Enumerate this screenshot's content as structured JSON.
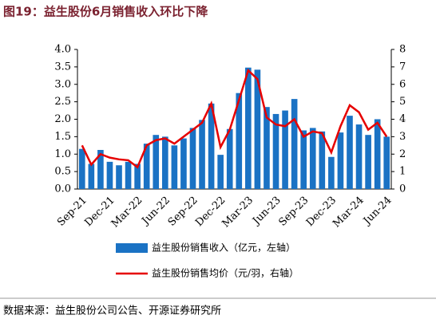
{
  "chart_data": {
    "type": "bar",
    "title": "图19：益生股份6月销售收入环比下降",
    "categories": [
      "Sep-21",
      null,
      null,
      "Dec-21",
      null,
      null,
      "Mar-22",
      null,
      null,
      "Jun-22",
      null,
      null,
      "Sep-22",
      null,
      null,
      "Dec-22",
      null,
      null,
      "Mar-23",
      null,
      null,
      "Jun-23",
      null,
      null,
      "Sep-23",
      null,
      null,
      "Dec-23",
      null,
      null,
      "Mar-24",
      null,
      null,
      "Jun-24"
    ],
    "series": [
      {
        "name": "益生股份销售收入（亿元，左轴）",
        "type": "bar",
        "color": "#1a72c4",
        "values": [
          1.15,
          0.72,
          1.12,
          0.78,
          0.68,
          0.78,
          0.72,
          1.3,
          1.55,
          1.5,
          1.25,
          1.45,
          1.75,
          1.98,
          2.45,
          0.98,
          1.72,
          2.75,
          3.48,
          3.42,
          2.35,
          2.15,
          2.25,
          2.58,
          1.68,
          1.75,
          1.65,
          0.92,
          1.62,
          2.1,
          1.85,
          1.55,
          2.0,
          1.5
        ]
      },
      {
        "name": "益生股份销售均价（元/羽，右轴）",
        "type": "line",
        "axis": "y2",
        "color": "#e60000",
        "values": [
          2.5,
          1.4,
          2.0,
          1.8,
          1.7,
          1.65,
          1.25,
          2.5,
          2.8,
          2.9,
          2.6,
          3.0,
          3.4,
          3.8,
          4.9,
          2.4,
          3.4,
          5.1,
          6.8,
          6.3,
          4.1,
          3.7,
          3.6,
          4.0,
          3.0,
          3.3,
          3.2,
          2.1,
          3.6,
          4.8,
          4.4,
          3.4,
          3.8,
          3.0
        ]
      }
    ],
    "ylim": [
      0,
      4
    ],
    "yticks": [
      {
        "value": 0,
        "label": "0.0"
      },
      {
        "value": 0.5,
        "label": "0.5"
      },
      {
        "value": 1,
        "label": "1.0"
      },
      {
        "value": 1.5,
        "label": "1.5"
      },
      {
        "value": 2,
        "label": "2.0"
      },
      {
        "value": 2.5,
        "label": "2.5"
      },
      {
        "value": 3,
        "label": "3.0"
      },
      {
        "value": 3.5,
        "label": "3.5"
      },
      {
        "value": 4,
        "label": "4.0"
      }
    ],
    "y2lim": [
      0,
      8
    ],
    "y2ticks": [
      0,
      1,
      2,
      3,
      4,
      5,
      6,
      7,
      8
    ],
    "source": "数据来源：益生股份公司公告、开源证券研究所"
  }
}
